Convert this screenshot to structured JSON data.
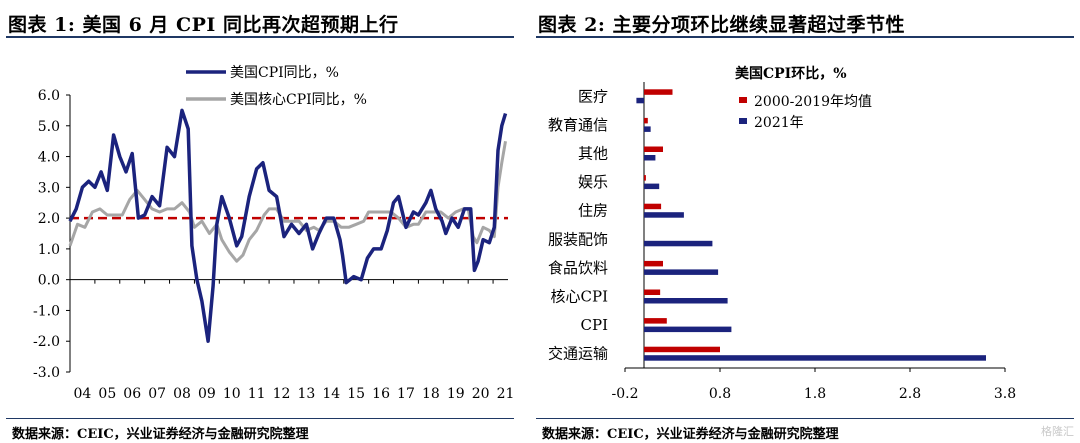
{
  "left_panel": {
    "title": "图表 1:  美国 6 月 CPI 同比再次超预期上行",
    "source": "数据来源：CEIC，兴业证券经济与金融研究院整理"
  },
  "right_panel": {
    "title": "图表 2:  主要分项环比继续显著超过季节性",
    "source": "数据来源：CEIC，兴业证券经济与金融研究院整理"
  },
  "watermark": "格隆汇",
  "colors": {
    "navy": "#1b237d",
    "gray": "#a6a6a6",
    "red": "#c00000",
    "title_rule": "#1f3864"
  },
  "chart_data": [
    {
      "type": "line",
      "title": "",
      "xlabel": "",
      "ylabel": "",
      "ylim": [
        -3.0,
        6.0
      ],
      "yticks": [
        "6.0",
        "5.0",
        "4.0",
        "3.0",
        "2.0",
        "1.0",
        "0.0",
        "-1.0",
        "-2.0",
        "-3.0"
      ],
      "ytick_values": [
        6,
        5,
        4,
        3,
        2,
        1,
        0,
        -1,
        -2,
        -3
      ],
      "xlim": [
        2004.0,
        2021.6
      ],
      "xticks": [
        "04",
        "05",
        "06",
        "07",
        "08",
        "09",
        "10",
        "11",
        "12",
        "13",
        "14",
        "15",
        "16",
        "17",
        "18",
        "19",
        "20",
        "21"
      ],
      "xtick_values": [
        2004,
        2005,
        2006,
        2007,
        2008,
        2009,
        2010,
        2011,
        2012,
        2013,
        2014,
        2015,
        2016,
        2017,
        2018,
        2019,
        2020,
        2021
      ],
      "legend_position": "top",
      "reference_line": {
        "value": 2.0,
        "style": "dashed",
        "color": "#c00000"
      },
      "grid": false,
      "series": [
        {
          "name": "美国CPI同比，%",
          "color": "#1b237d",
          "points": [
            [
              2004.0,
              1.9
            ],
            [
              2004.25,
              2.3
            ],
            [
              2004.5,
              3.0
            ],
            [
              2004.75,
              3.2
            ],
            [
              2005.0,
              3.0
            ],
            [
              2005.25,
              3.5
            ],
            [
              2005.5,
              2.9
            ],
            [
              2005.75,
              4.7
            ],
            [
              2006.0,
              4.0
            ],
            [
              2006.25,
              3.5
            ],
            [
              2006.5,
              4.1
            ],
            [
              2006.75,
              2.0
            ],
            [
              2007.0,
              2.1
            ],
            [
              2007.3,
              2.7
            ],
            [
              2007.6,
              2.4
            ],
            [
              2007.9,
              4.3
            ],
            [
              2008.2,
              4.0
            ],
            [
              2008.5,
              5.5
            ],
            [
              2008.75,
              4.9
            ],
            [
              2008.9,
              1.1
            ],
            [
              2009.1,
              0.0
            ],
            [
              2009.3,
              -0.7
            ],
            [
              2009.55,
              -2.0
            ],
            [
              2009.75,
              -0.2
            ],
            [
              2009.9,
              1.8
            ],
            [
              2010.1,
              2.7
            ],
            [
              2010.4,
              2.0
            ],
            [
              2010.7,
              1.1
            ],
            [
              2010.9,
              1.4
            ],
            [
              2011.2,
              2.7
            ],
            [
              2011.5,
              3.6
            ],
            [
              2011.75,
              3.8
            ],
            [
              2012.0,
              2.9
            ],
            [
              2012.3,
              2.7
            ],
            [
              2012.6,
              1.4
            ],
            [
              2012.9,
              1.8
            ],
            [
              2013.2,
              1.5
            ],
            [
              2013.5,
              1.8
            ],
            [
              2013.75,
              1.0
            ],
            [
              2014.0,
              1.5
            ],
            [
              2014.3,
              2.0
            ],
            [
              2014.6,
              2.0
            ],
            [
              2014.85,
              1.3
            ],
            [
              2014.95,
              0.8
            ],
            [
              2015.1,
              -0.1
            ],
            [
              2015.4,
              0.1
            ],
            [
              2015.7,
              0.0
            ],
            [
              2015.95,
              0.7
            ],
            [
              2016.2,
              1.0
            ],
            [
              2016.5,
              1.0
            ],
            [
              2016.75,
              1.6
            ],
            [
              2017.0,
              2.5
            ],
            [
              2017.2,
              2.7
            ],
            [
              2017.5,
              1.7
            ],
            [
              2017.8,
              2.2
            ],
            [
              2018.0,
              2.1
            ],
            [
              2018.3,
              2.5
            ],
            [
              2018.5,
              2.9
            ],
            [
              2018.7,
              2.3
            ],
            [
              2018.95,
              1.9
            ],
            [
              2019.1,
              1.5
            ],
            [
              2019.35,
              2.0
            ],
            [
              2019.6,
              1.7
            ],
            [
              2019.85,
              2.3
            ],
            [
              2020.1,
              2.3
            ],
            [
              2020.25,
              0.3
            ],
            [
              2020.4,
              0.6
            ],
            [
              2020.6,
              1.3
            ],
            [
              2020.85,
              1.2
            ],
            [
              2021.05,
              1.7
            ],
            [
              2021.2,
              4.2
            ],
            [
              2021.35,
              5.0
            ],
            [
              2021.5,
              5.4
            ]
          ]
        },
        {
          "name": "美国核心CPI同比，%",
          "color": "#a6a6a6",
          "points": [
            [
              2004.0,
              1.1
            ],
            [
              2004.3,
              1.8
            ],
            [
              2004.6,
              1.7
            ],
            [
              2004.9,
              2.2
            ],
            [
              2005.2,
              2.3
            ],
            [
              2005.5,
              2.1
            ],
            [
              2005.8,
              2.1
            ],
            [
              2006.1,
              2.1
            ],
            [
              2006.4,
              2.6
            ],
            [
              2006.7,
              2.9
            ],
            [
              2007.0,
              2.6
            ],
            [
              2007.3,
              2.3
            ],
            [
              2007.6,
              2.2
            ],
            [
              2007.9,
              2.3
            ],
            [
              2008.2,
              2.3
            ],
            [
              2008.5,
              2.5
            ],
            [
              2008.8,
              2.2
            ],
            [
              2009.0,
              1.7
            ],
            [
              2009.3,
              1.9
            ],
            [
              2009.6,
              1.5
            ],
            [
              2009.9,
              1.8
            ],
            [
              2010.1,
              1.3
            ],
            [
              2010.4,
              0.9
            ],
            [
              2010.7,
              0.6
            ],
            [
              2010.95,
              0.8
            ],
            [
              2011.2,
              1.3
            ],
            [
              2011.5,
              1.6
            ],
            [
              2011.8,
              2.1
            ],
            [
              2012.0,
              2.3
            ],
            [
              2012.3,
              2.3
            ],
            [
              2012.6,
              1.9
            ],
            [
              2012.9,
              1.9
            ],
            [
              2013.2,
              1.9
            ],
            [
              2013.5,
              1.6
            ],
            [
              2013.8,
              1.7
            ],
            [
              2014.0,
              1.6
            ],
            [
              2014.3,
              1.9
            ],
            [
              2014.6,
              1.9
            ],
            [
              2014.9,
              1.7
            ],
            [
              2015.2,
              1.7
            ],
            [
              2015.5,
              1.8
            ],
            [
              2015.8,
              1.9
            ],
            [
              2016.0,
              2.2
            ],
            [
              2016.3,
              2.2
            ],
            [
              2016.6,
              2.2
            ],
            [
              2016.9,
              2.2
            ],
            [
              2017.2,
              2.0
            ],
            [
              2017.5,
              1.7
            ],
            [
              2017.8,
              1.8
            ],
            [
              2018.0,
              1.8
            ],
            [
              2018.3,
              2.2
            ],
            [
              2018.6,
              2.2
            ],
            [
              2018.9,
              2.2
            ],
            [
              2019.2,
              2.0
            ],
            [
              2019.5,
              2.2
            ],
            [
              2019.8,
              2.3
            ],
            [
              2020.0,
              2.3
            ],
            [
              2020.2,
              1.4
            ],
            [
              2020.35,
              1.2
            ],
            [
              2020.6,
              1.7
            ],
            [
              2020.85,
              1.6
            ],
            [
              2021.05,
              1.4
            ],
            [
              2021.2,
              3.0
            ],
            [
              2021.35,
              3.8
            ],
            [
              2021.5,
              4.5
            ]
          ]
        }
      ]
    },
    {
      "type": "bar",
      "orientation": "horizontal",
      "title": "美国CPI环比，%",
      "categories": [
        "医疗",
        "教育通信",
        "其他",
        "娱乐",
        "住房",
        "服装配饰",
        "食品饮料",
        "核心CPI",
        "CPI",
        "交通运输"
      ],
      "xlim": [
        -0.2,
        3.8
      ],
      "xticks": [
        "-0.2",
        "0.8",
        "1.8",
        "2.8",
        "3.8"
      ],
      "xtick_values": [
        -0.2,
        0.8,
        1.8,
        2.8,
        3.8
      ],
      "legend_position": "top-right",
      "grid": false,
      "series": [
        {
          "name": "2000-2019年均值",
          "color": "#c00000",
          "values": [
            0.3,
            0.04,
            0.2,
            0.02,
            0.18,
            0.0,
            0.2,
            0.17,
            0.24,
            0.8
          ]
        },
        {
          "name": "2021年",
          "color": "#1b237d",
          "values": [
            -0.08,
            0.07,
            0.12,
            0.16,
            0.42,
            0.72,
            0.78,
            0.88,
            0.92,
            3.6
          ]
        }
      ]
    }
  ]
}
